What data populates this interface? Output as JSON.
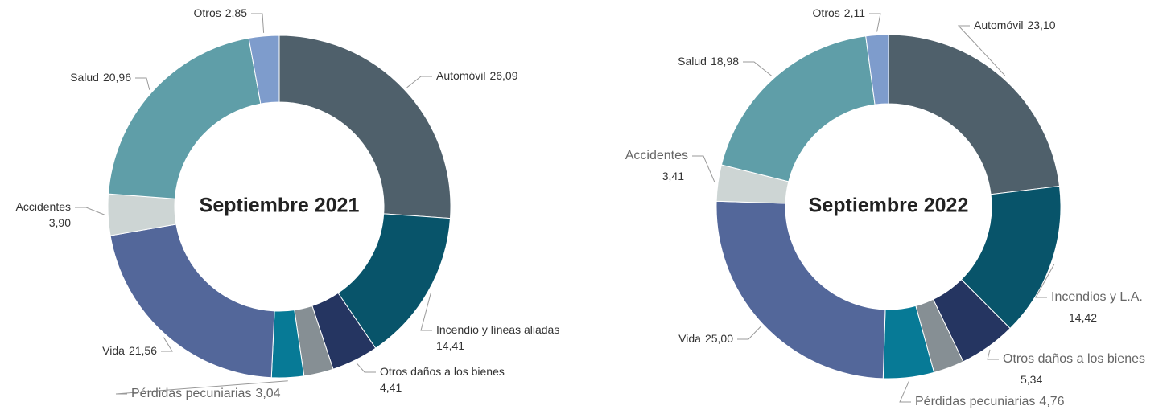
{
  "chart_data": [
    {
      "type": "donut",
      "title": "Septiembre 2021",
      "categories": [
        "Automóvil",
        "Incendio y líneas aliadas",
        "Otros daños a los bienes",
        null,
        "Pérdidas pecuniarias",
        "Vida",
        "Accidentes",
        "Salud",
        "Otros"
      ],
      "values": [
        26.09,
        14.41,
        4.41,
        2.78,
        3.04,
        21.56,
        3.9,
        20.96,
        2.85
      ],
      "value_labels": [
        "26,09",
        "14,41",
        "4,41",
        null,
        "3,04",
        "21,56",
        "3,90",
        "20,96",
        "2,85"
      ],
      "colors": [
        "#4f606b",
        "#08546a",
        "#253561",
        "#868f94",
        "#077a96",
        "#53679a",
        "#cdd5d4",
        "#5f9ea8",
        "#7e9ccc"
      ]
    },
    {
      "type": "donut",
      "title": "Septiembre 2022",
      "categories": [
        "Automóvil",
        "Incendios y L.A.",
        "Otros daños a los bienes",
        null,
        "Pérdidas pecuniarias",
        "Vida",
        "Accidentes",
        "Salud",
        "Otros"
      ],
      "values": [
        23.1,
        14.42,
        5.34,
        2.88,
        4.76,
        25.0,
        3.41,
        18.98,
        2.11
      ],
      "value_labels": [
        "23,10",
        "14,42",
        "5,34",
        null,
        "4,76",
        "25,00",
        "3,41",
        "18,98",
        "2,11"
      ],
      "colors": [
        "#4f606b",
        "#08546a",
        "#253561",
        "#868f94",
        "#077a96",
        "#53679a",
        "#cdd5d4",
        "#5f9ea8",
        "#7e9ccc"
      ]
    }
  ]
}
